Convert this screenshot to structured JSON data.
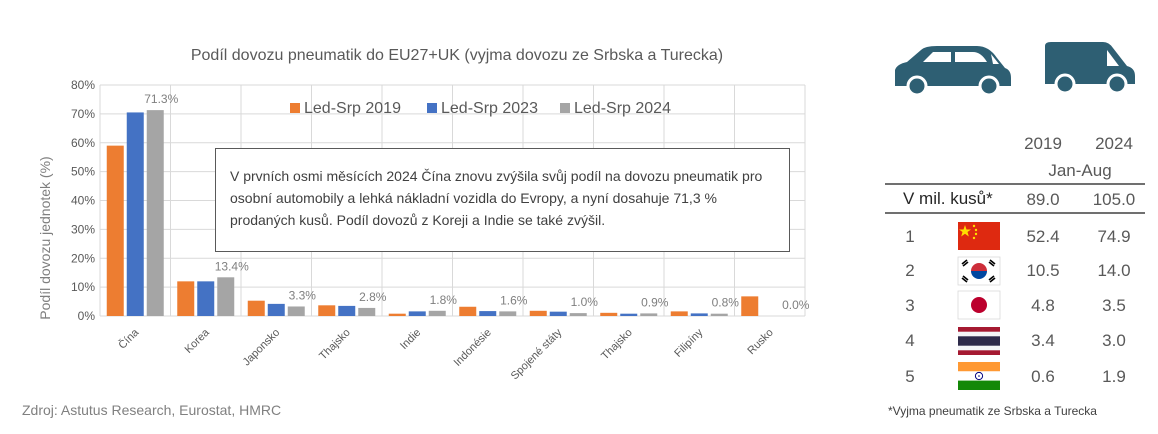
{
  "chart_data": {
    "type": "bar",
    "title": "Podíl dovozu pneumatik do EU27+UK (vyjma dovozu ze Srbska a Turecka)",
    "ylabel": "Podíl dovozu jednotek (%)",
    "ylim": [
      0,
      80
    ],
    "yticks": [
      "0%",
      "10%",
      "20%",
      "30%",
      "40%",
      "50%",
      "60%",
      "70%",
      "80%"
    ],
    "categories": [
      "Čína",
      "Korea",
      "Japonsko",
      "Thajsko",
      "Indie",
      "Indonésie",
      "Spojené státy",
      "Thajsko",
      "Filipíny",
      "Rusko"
    ],
    "series": [
      {
        "name": "Led-Srp 2019",
        "color": "#ed7d31",
        "values": [
          59,
          12,
          5.3,
          3.7,
          0.8,
          3.2,
          1.8,
          1.1,
          1.6,
          6.8
        ]
      },
      {
        "name": "Led-Srp 2023",
        "color": "#4472c4",
        "values": [
          70.5,
          12,
          4.2,
          3.5,
          1.6,
          1.7,
          1.5,
          0.8,
          0.9,
          0
        ]
      },
      {
        "name": "Led-Srp 2024",
        "color": "#a5a5a5",
        "values": [
          71.3,
          13.4,
          3.3,
          2.8,
          1.8,
          1.6,
          1.0,
          0.9,
          0.8,
          0.0
        ]
      }
    ],
    "data_labels": [
      "71.3%",
      "13.4%",
      "3.3%",
      "2.8%",
      "1.8%",
      "1.6%",
      "1.0%",
      "0.9%",
      "0.8%",
      "0.0%"
    ],
    "legend_position": "top",
    "grid": true
  },
  "annotation": "V prvních osmi měsících 2024 Čína znovu zvýšila svůj podíl na dovozu pneumatik pro osobní automobily a lehká nákladní vozidla do Evropy, a nyní dosahuje 71,3 % prodaných kusů. Podíl dovozů z Koreji a Indie se také zvýšil.",
  "source": "Zdroj: Astutus Research, Eurostat, HMRC",
  "table": {
    "car_icon": "car-icon",
    "van_icon": "van-icon",
    "col_2019": "2019",
    "col_2024": "2024",
    "period": "Jan-Aug",
    "total_label": "V mil. kusů*",
    "total_2019": "89.0",
    "total_2024": "105.0",
    "rows": [
      {
        "rank": "1",
        "flag": "china-flag-icon",
        "v2019": "52.4",
        "v2024": "74.9"
      },
      {
        "rank": "2",
        "flag": "south-korea-flag-icon",
        "v2019": "10.5",
        "v2024": "14.0"
      },
      {
        "rank": "3",
        "flag": "japan-flag-icon",
        "v2019": "4.8",
        "v2024": "3.5"
      },
      {
        "rank": "4",
        "flag": "thailand-flag-icon",
        "v2019": "3.4",
        "v2024": "3.0"
      },
      {
        "rank": "5",
        "flag": "india-flag-icon",
        "v2019": "0.6",
        "v2024": "1.9"
      }
    ],
    "footnote": "*Vyjma pneumatik ze Srbska a Turecka"
  }
}
